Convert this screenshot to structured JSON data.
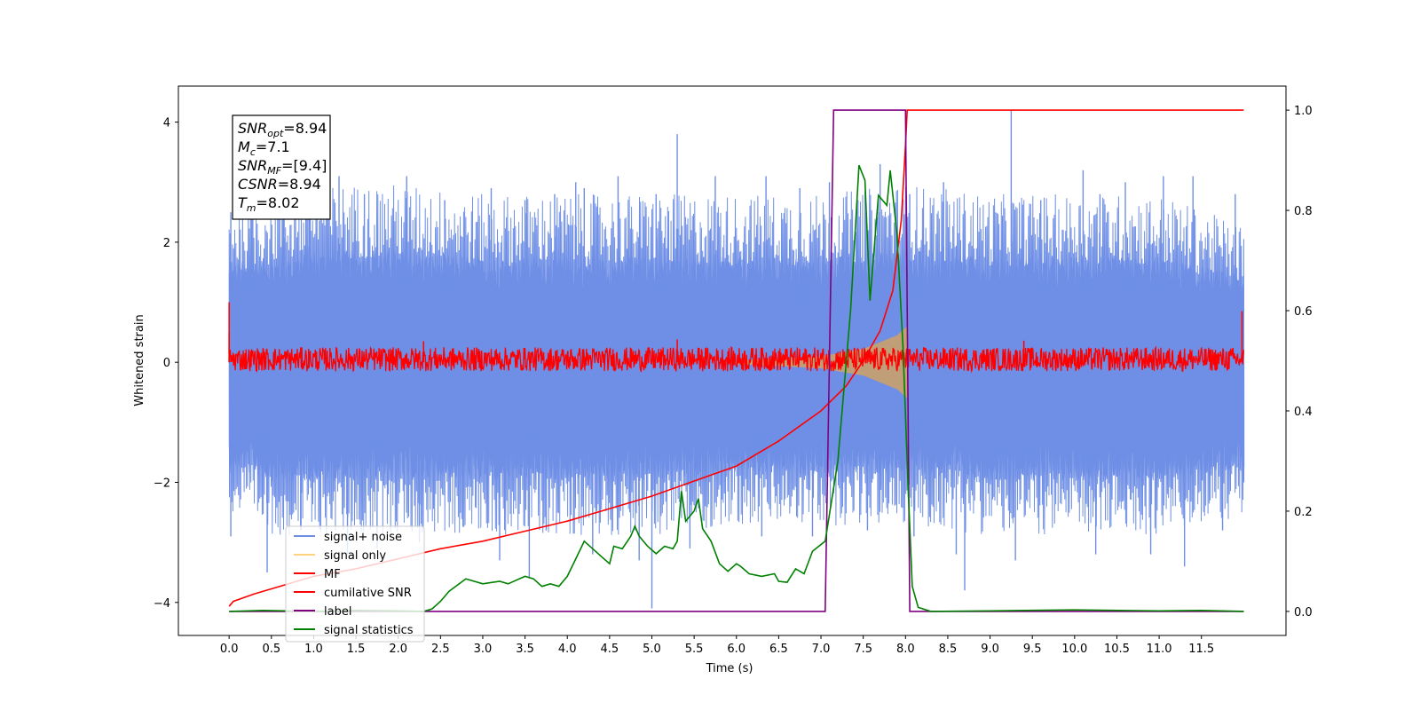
{
  "chart_data": {
    "type": "line",
    "xlabel": "Time (s)",
    "ylabel": "Whitened strain",
    "xlim": [
      -0.6,
      12.5
    ],
    "ylim": [
      -4.55,
      4.6
    ],
    "y2lim": [
      -0.048,
      1.048
    ],
    "xticks": [
      0.0,
      0.5,
      1.0,
      1.5,
      2.0,
      2.5,
      3.0,
      3.5,
      4.0,
      4.5,
      5.0,
      5.5,
      6.0,
      6.5,
      7.0,
      7.5,
      8.0,
      8.5,
      9.0,
      9.5,
      10.0,
      10.5,
      11.0,
      11.5
    ],
    "xtick_labels": [
      "0.0",
      "0.5",
      "1.0",
      "1.5",
      "2.0",
      "2.5",
      "3.0",
      "3.5",
      "4.0",
      "4.5",
      "5.0",
      "5.5",
      "6.0",
      "6.5",
      "7.0",
      "7.5",
      "8.0",
      "8.5",
      "9.0",
      "9.5",
      "10.0",
      "10.5",
      "11.0",
      "11.5"
    ],
    "yticks": [
      -4,
      -2,
      0,
      2,
      4
    ],
    "ytick_labels": [
      "−4",
      "−2",
      "0",
      "2",
      "4"
    ],
    "y2ticks": [
      0.0,
      0.2,
      0.4,
      0.6,
      0.8,
      1.0
    ],
    "y2tick_labels": [
      "0.0",
      "0.2",
      "0.4",
      "0.6",
      "0.8",
      "1.0"
    ],
    "grid": false,
    "legend_position": "bottom-left",
    "series": [
      {
        "name": "signal+ noise",
        "axis": "left",
        "color": "#6f8fe6",
        "style": "noise-band",
        "x_range": [
          0.0,
          12.0
        ],
        "upper_envelope": [
          [
            0.0,
            1.5
          ],
          [
            0.5,
            1.6
          ],
          [
            1.0,
            1.7
          ],
          [
            2.0,
            1.7
          ],
          [
            3.0,
            1.6
          ],
          [
            4.0,
            1.6
          ],
          [
            5.0,
            1.6
          ],
          [
            6.0,
            1.6
          ],
          [
            7.0,
            1.6
          ],
          [
            8.0,
            1.7
          ],
          [
            9.0,
            1.6
          ],
          [
            10.0,
            1.6
          ],
          [
            11.0,
            1.6
          ],
          [
            12.0,
            1.3
          ]
        ],
        "lower_envelope": [
          [
            0.0,
            -1.6
          ],
          [
            0.5,
            -1.8
          ],
          [
            1.0,
            -1.8
          ],
          [
            2.0,
            -1.8
          ],
          [
            3.0,
            -1.8
          ],
          [
            4.0,
            -1.8
          ],
          [
            5.0,
            -1.8
          ],
          [
            6.0,
            -1.7
          ],
          [
            7.0,
            -1.7
          ],
          [
            8.0,
            -1.7
          ],
          [
            9.0,
            -1.8
          ],
          [
            10.0,
            -1.8
          ],
          [
            11.0,
            -1.8
          ],
          [
            12.0,
            -1.6
          ]
        ],
        "peaks": [
          [
            0.02,
            2.5
          ],
          [
            0.28,
            2.4
          ],
          [
            0.65,
            2.9
          ],
          [
            0.95,
            2.5
          ],
          [
            1.3,
            3.1
          ],
          [
            1.6,
            2.8
          ],
          [
            2.1,
            3.1
          ],
          [
            2.55,
            2.7
          ],
          [
            3.1,
            2.9
          ],
          [
            3.5,
            2.7
          ],
          [
            3.85,
            2.8
          ],
          [
            4.1,
            3.0
          ],
          [
            4.2,
            2.9
          ],
          [
            4.6,
            3.1
          ],
          [
            5.05,
            2.8
          ],
          [
            5.3,
            3.8
          ],
          [
            5.75,
            3.1
          ],
          [
            6.35,
            3.1
          ],
          [
            6.75,
            2.9
          ],
          [
            7.1,
            3.0
          ],
          [
            7.7,
            3.3
          ],
          [
            8.05,
            2.8
          ],
          [
            8.45,
            3.0
          ],
          [
            9.25,
            4.2
          ],
          [
            9.6,
            2.7
          ],
          [
            10.1,
            3.2
          ],
          [
            10.3,
            2.8
          ],
          [
            10.6,
            3.0
          ],
          [
            11.05,
            3.1
          ],
          [
            11.4,
            3.1
          ],
          [
            11.9,
            2.8
          ]
        ],
        "troughs": [
          [
            0.02,
            -2.9
          ],
          [
            0.45,
            -3.5
          ],
          [
            0.85,
            -2.8
          ],
          [
            1.4,
            -3.2
          ],
          [
            1.75,
            -3.1
          ],
          [
            2.25,
            -3.0
          ],
          [
            3.2,
            -3.3
          ],
          [
            3.55,
            -3.6
          ],
          [
            3.75,
            -2.8
          ],
          [
            4.3,
            -3.2
          ],
          [
            4.85,
            -3.3
          ],
          [
            5.0,
            -4.1
          ],
          [
            5.45,
            -3.1
          ],
          [
            6.3,
            -2.9
          ],
          [
            6.9,
            -2.9
          ],
          [
            7.55,
            -2.8
          ],
          [
            8.1,
            -2.9
          ],
          [
            8.6,
            -3.2
          ],
          [
            8.7,
            -3.8
          ],
          [
            9.3,
            -3.3
          ],
          [
            10.25,
            -3.2
          ],
          [
            10.9,
            -3.2
          ],
          [
            11.3,
            -3.4
          ],
          [
            11.75,
            -2.8
          ],
          [
            12.0,
            -2.0
          ]
        ]
      },
      {
        "name": "signal only",
        "axis": "left",
        "color": "#ffd27f",
        "style": "chirp",
        "chirp": [
          [
            6.0,
            0.03
          ],
          [
            6.5,
            0.06
          ],
          [
            7.0,
            0.1
          ],
          [
            7.5,
            0.22
          ],
          [
            7.9,
            0.45
          ],
          [
            8.02,
            0.6
          ]
        ]
      },
      {
        "name": "MF",
        "axis": "left",
        "color": "#ff0000",
        "style": "noise-line",
        "x_range": [
          0.0,
          12.0
        ],
        "band": [
          -0.15,
          0.25
        ],
        "spikes": [
          [
            0.0,
            1.0
          ],
          [
            0.0,
            0.5
          ],
          [
            11.98,
            0.85
          ],
          [
            2.3,
            0.35
          ],
          [
            5.3,
            0.38
          ],
          [
            9.4,
            0.36
          ]
        ]
      },
      {
        "name": "cumilative SNR",
        "axis": "right",
        "color": "#ff0000",
        "style": "line",
        "points": [
          [
            0.0,
            0.01
          ],
          [
            0.05,
            0.02
          ],
          [
            0.3,
            0.035
          ],
          [
            0.5,
            0.045
          ],
          [
            1.0,
            0.07
          ],
          [
            1.5,
            0.085
          ],
          [
            2.0,
            0.105
          ],
          [
            2.5,
            0.125
          ],
          [
            3.0,
            0.14
          ],
          [
            3.5,
            0.16
          ],
          [
            4.0,
            0.18
          ],
          [
            4.5,
            0.205
          ],
          [
            5.0,
            0.23
          ],
          [
            5.5,
            0.26
          ],
          [
            6.0,
            0.29
          ],
          [
            6.5,
            0.34
          ],
          [
            7.0,
            0.4
          ],
          [
            7.3,
            0.45
          ],
          [
            7.5,
            0.5
          ],
          [
            7.7,
            0.56
          ],
          [
            7.85,
            0.64
          ],
          [
            7.95,
            0.78
          ],
          [
            8.0,
            0.93
          ],
          [
            8.02,
            1.0
          ],
          [
            12.0,
            1.0
          ]
        ]
      },
      {
        "name": "label",
        "axis": "right",
        "color": "#800080",
        "style": "line",
        "points": [
          [
            0.0,
            0.0
          ],
          [
            7.05,
            0.0
          ],
          [
            7.15,
            1.0
          ],
          [
            8.0,
            1.0
          ],
          [
            8.05,
            0.0
          ],
          [
            12.0,
            0.0
          ]
        ]
      },
      {
        "name": "signal statistics",
        "axis": "right",
        "color": "#008000",
        "style": "line",
        "points": [
          [
            0.0,
            0.0
          ],
          [
            0.4,
            0.002
          ],
          [
            1.0,
            0.0
          ],
          [
            1.5,
            0.002
          ],
          [
            2.0,
            0.001
          ],
          [
            2.3,
            0.0
          ],
          [
            2.4,
            0.005
          ],
          [
            2.5,
            0.02
          ],
          [
            2.6,
            0.04
          ],
          [
            2.8,
            0.065
          ],
          [
            3.0,
            0.055
          ],
          [
            3.2,
            0.06
          ],
          [
            3.3,
            0.055
          ],
          [
            3.5,
            0.07
          ],
          [
            3.6,
            0.065
          ],
          [
            3.7,
            0.05
          ],
          [
            3.8,
            0.055
          ],
          [
            3.9,
            0.05
          ],
          [
            4.0,
            0.07
          ],
          [
            4.1,
            0.105
          ],
          [
            4.2,
            0.14
          ],
          [
            4.3,
            0.125
          ],
          [
            4.4,
            0.11
          ],
          [
            4.5,
            0.095
          ],
          [
            4.55,
            0.13
          ],
          [
            4.65,
            0.125
          ],
          [
            4.75,
            0.15
          ],
          [
            4.8,
            0.17
          ],
          [
            4.85,
            0.15
          ],
          [
            4.95,
            0.13
          ],
          [
            5.05,
            0.115
          ],
          [
            5.15,
            0.13
          ],
          [
            5.25,
            0.125
          ],
          [
            5.3,
            0.14
          ],
          [
            5.35,
            0.24
          ],
          [
            5.4,
            0.18
          ],
          [
            5.5,
            0.2
          ],
          [
            5.55,
            0.225
          ],
          [
            5.6,
            0.165
          ],
          [
            5.7,
            0.14
          ],
          [
            5.8,
            0.095
          ],
          [
            5.9,
            0.08
          ],
          [
            6.0,
            0.095
          ],
          [
            6.05,
            0.09
          ],
          [
            6.15,
            0.075
          ],
          [
            6.3,
            0.07
          ],
          [
            6.45,
            0.075
          ],
          [
            6.5,
            0.06
          ],
          [
            6.6,
            0.058
          ],
          [
            6.7,
            0.085
          ],
          [
            6.8,
            0.075
          ],
          [
            6.9,
            0.12
          ],
          [
            7.05,
            0.14
          ],
          [
            7.2,
            0.3
          ],
          [
            7.35,
            0.6
          ],
          [
            7.45,
            0.89
          ],
          [
            7.52,
            0.86
          ],
          [
            7.58,
            0.62
          ],
          [
            7.68,
            0.83
          ],
          [
            7.78,
            0.81
          ],
          [
            7.82,
            0.88
          ],
          [
            7.9,
            0.75
          ],
          [
            7.97,
            0.53
          ],
          [
            8.03,
            0.25
          ],
          [
            8.08,
            0.05
          ],
          [
            8.15,
            0.008
          ],
          [
            8.3,
            0.0
          ],
          [
            9.0,
            0.001
          ],
          [
            10.0,
            0.003
          ],
          [
            11.0,
            0.001
          ],
          [
            11.5,
            0.002
          ],
          [
            12.0,
            0.0
          ]
        ]
      }
    ],
    "annotation": {
      "lines": [
        {
          "sym": "SNR",
          "sub": "opt",
          "eq": "=8.94"
        },
        {
          "sym": "M",
          "sub": "c",
          "eq": "=7.1"
        },
        {
          "sym": "SNR",
          "sub": "MF",
          "eq": "=[9.4]"
        },
        {
          "sym": "CSNR",
          "sub": "",
          "eq": "=8.94"
        },
        {
          "sym": "T",
          "sub": "m",
          "eq": "=8.02"
        }
      ]
    }
  }
}
